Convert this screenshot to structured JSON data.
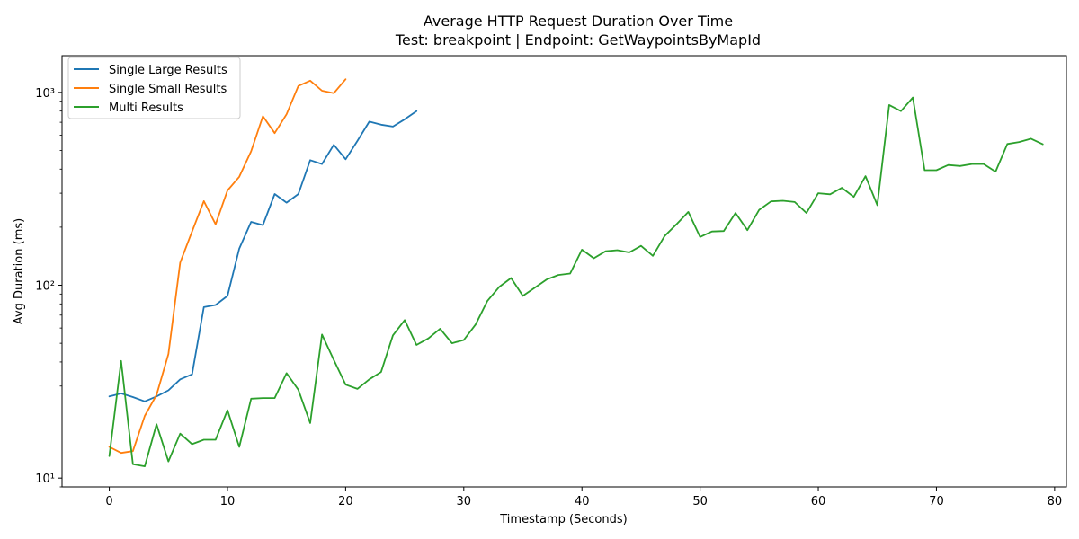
{
  "chart_data": {
    "type": "line",
    "title": "Average HTTP Request Duration Over Time",
    "subtitle": "Test: breakpoint | Endpoint: GetWaypointsByMapId",
    "xlabel": "Timestamp (Seconds)",
    "ylabel": "Avg Duration (ms)",
    "yscale": "log",
    "xlim": [
      -4,
      81
    ],
    "ylim": [
      9,
      1550
    ],
    "xticks": [
      0,
      10,
      20,
      30,
      40,
      50,
      60,
      70,
      80
    ],
    "xtick_labels": [
      "0",
      "10",
      "20",
      "30",
      "40",
      "50",
      "60",
      "70",
      "80"
    ],
    "yticks": [
      10,
      100,
      1000
    ],
    "ytick_labels": [
      "10¹",
      "10²",
      "10³"
    ],
    "grid": false,
    "legend_position": "top-left",
    "series": [
      {
        "name": "Single Large Results",
        "color": "#1f77b4",
        "x": [
          0,
          1,
          2,
          3,
          4,
          5,
          6,
          7,
          8,
          9,
          10,
          11,
          12,
          13,
          14,
          15,
          16,
          17,
          18,
          19,
          20,
          21,
          22,
          23,
          24,
          25,
          26
        ],
        "y": [
          26.5,
          27.5,
          26.3,
          25,
          26.5,
          28.5,
          32.5,
          34.5,
          77,
          79,
          88,
          155,
          213,
          205,
          297,
          268,
          297,
          445,
          425,
          535,
          450,
          560,
          705,
          680,
          665,
          725,
          800
        ]
      },
      {
        "name": "Single Small Results",
        "color": "#ff7f0e",
        "x": [
          0,
          1,
          2,
          3,
          4,
          5,
          6,
          7,
          8,
          9,
          10,
          11,
          12,
          13,
          14,
          15,
          16,
          17,
          18,
          19,
          20
        ],
        "y": [
          14.5,
          13.5,
          13.8,
          21,
          27,
          44,
          131,
          190,
          273,
          207,
          310,
          365,
          495,
          752,
          615,
          770,
          1080,
          1150,
          1020,
          990,
          1170
        ]
      },
      {
        "name": "Multi Results",
        "color": "#2ca02c",
        "x": [
          0,
          1,
          2,
          3,
          4,
          5,
          6,
          7,
          8,
          9,
          10,
          11,
          12,
          13,
          14,
          15,
          16,
          17,
          18,
          19,
          20,
          21,
          22,
          23,
          24,
          25,
          26,
          27,
          28,
          29,
          30,
          31,
          32,
          33,
          34,
          35,
          36,
          37,
          38,
          39,
          40,
          41,
          42,
          43,
          44,
          45,
          46,
          47,
          48,
          49,
          50,
          51,
          52,
          53,
          54,
          55,
          56,
          57,
          58,
          59,
          60,
          61,
          62,
          63,
          64,
          65,
          66,
          67,
          68,
          69,
          70,
          71,
          72,
          73,
          74,
          75,
          76,
          77,
          78,
          79
        ],
        "y": [
          13,
          40.5,
          11.8,
          11.5,
          19,
          12.2,
          17,
          15,
          15.8,
          15.8,
          22.5,
          14.5,
          25.8,
          26,
          26,
          35,
          28.7,
          19.3,
          55.5,
          41,
          30.5,
          29,
          32.5,
          35.5,
          55,
          66,
          49,
          53,
          59.5,
          50,
          52,
          62.5,
          83,
          98,
          109,
          88,
          97,
          107,
          113,
          115,
          153,
          138,
          150,
          152,
          148,
          160,
          142,
          180,
          207,
          240,
          178,
          190,
          191,
          237,
          193,
          246,
          272,
          274,
          270,
          237,
          300,
          296,
          320,
          287,
          368,
          260,
          860,
          800,
          940,
          395,
          395,
          420,
          415,
          425,
          425,
          388,
          540,
          553,
          575,
          538
        ]
      }
    ]
  }
}
